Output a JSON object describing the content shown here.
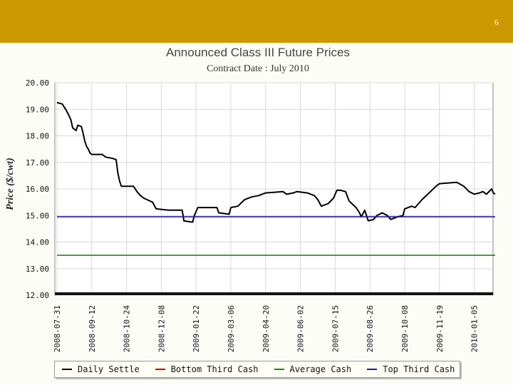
{
  "slide": {
    "number": "6"
  },
  "colors": {
    "bar": "#cc9900",
    "daily": "#000000",
    "bottom": "#cc0000",
    "average": "#1a8a1a",
    "top": "#1a1aaa"
  },
  "chart_data": {
    "type": "line",
    "title": "Announced Class III  Future Prices",
    "subtitle": "Contract Date : July 2010",
    "ylabel": "Price ($/cwt)",
    "xlabel": "",
    "ylim": [
      12,
      20
    ],
    "y_ticks": [
      "20.00",
      "19.00",
      "18.00",
      "17.00",
      "16.00",
      "15.00",
      "14.00",
      "13.00",
      "12.00"
    ],
    "x_ticks": [
      "2008-07-31",
      "2008-09-12",
      "2008-10-24",
      "2008-12-08",
      "2009-01-22",
      "2009-03-06",
      "2009-04-20",
      "2009-06-02",
      "2009-07-15",
      "2009-08-26",
      "2009-10-08",
      "2009-11-19",
      "2010-01-05"
    ],
    "series": [
      {
        "name": "Daily Settle",
        "color": "#000000",
        "points": [
          [
            0,
            19.25
          ],
          [
            0.15,
            19.2
          ],
          [
            0.25,
            19.0
          ],
          [
            0.35,
            18.75
          ],
          [
            0.4,
            18.6
          ],
          [
            0.45,
            18.3
          ],
          [
            0.55,
            18.2
          ],
          [
            0.6,
            18.4
          ],
          [
            0.7,
            18.35
          ],
          [
            0.75,
            18.1
          ],
          [
            0.8,
            17.8
          ],
          [
            0.85,
            17.6
          ],
          [
            0.9,
            17.5
          ],
          [
            0.95,
            17.35
          ],
          [
            1.0,
            17.3
          ],
          [
            1.3,
            17.3
          ],
          [
            1.4,
            17.2
          ],
          [
            1.6,
            17.15
          ],
          [
            1.7,
            17.1
          ],
          [
            1.75,
            16.6
          ],
          [
            1.8,
            16.3
          ],
          [
            1.85,
            16.1
          ],
          [
            2.2,
            16.1
          ],
          [
            2.3,
            15.9
          ],
          [
            2.4,
            15.75
          ],
          [
            2.5,
            15.65
          ],
          [
            2.75,
            15.5
          ],
          [
            2.85,
            15.25
          ],
          [
            3.2,
            15.2
          ],
          [
            3.6,
            15.2
          ],
          [
            3.65,
            14.8
          ],
          [
            3.9,
            14.75
          ],
          [
            3.95,
            15.0
          ],
          [
            4.05,
            15.3
          ],
          [
            4.6,
            15.3
          ],
          [
            4.65,
            15.1
          ],
          [
            4.95,
            15.05
          ],
          [
            5.0,
            15.3
          ],
          [
            5.2,
            15.35
          ],
          [
            5.4,
            15.6
          ],
          [
            5.6,
            15.7
          ],
          [
            5.8,
            15.75
          ],
          [
            6.0,
            15.85
          ],
          [
            6.5,
            15.9
          ],
          [
            6.6,
            15.8
          ],
          [
            6.8,
            15.85
          ],
          [
            6.9,
            15.9
          ],
          [
            7.2,
            15.85
          ],
          [
            7.4,
            15.75
          ],
          [
            7.5,
            15.6
          ],
          [
            7.6,
            15.35
          ],
          [
            7.8,
            15.45
          ],
          [
            7.95,
            15.65
          ],
          [
            8.05,
            15.95
          ],
          [
            8.15,
            15.95
          ],
          [
            8.3,
            15.9
          ],
          [
            8.4,
            15.55
          ],
          [
            8.6,
            15.3
          ],
          [
            8.7,
            15.1
          ],
          [
            8.75,
            14.95
          ],
          [
            8.85,
            15.2
          ],
          [
            8.95,
            14.8
          ],
          [
            9.1,
            14.85
          ],
          [
            9.2,
            15.0
          ],
          [
            9.35,
            15.1
          ],
          [
            9.5,
            15.0
          ],
          [
            9.6,
            14.85
          ],
          [
            9.8,
            14.95
          ],
          [
            9.95,
            15.0
          ],
          [
            10.0,
            15.25
          ],
          [
            10.2,
            15.35
          ],
          [
            10.3,
            15.3
          ],
          [
            10.5,
            15.6
          ],
          [
            10.7,
            15.85
          ],
          [
            10.9,
            16.1
          ],
          [
            11.0,
            16.2
          ],
          [
            11.5,
            16.25
          ],
          [
            11.7,
            16.1
          ],
          [
            11.85,
            15.9
          ],
          [
            12.0,
            15.8
          ],
          [
            12.15,
            15.85
          ],
          [
            12.25,
            15.9
          ],
          [
            12.35,
            15.8
          ],
          [
            12.5,
            16.0
          ],
          [
            12.55,
            15.85
          ],
          [
            12.6,
            15.8
          ]
        ]
      },
      {
        "name": "Bottom Third Cash",
        "color": "#cc0000",
        "points": []
      },
      {
        "name": "Average Cash",
        "color": "#1a8a1a",
        "points": [
          [
            0,
            13.5
          ],
          [
            12.6,
            13.5
          ]
        ]
      },
      {
        "name": "Top Third Cash",
        "color": "#1a1aaa",
        "points": [
          [
            0,
            14.95
          ],
          [
            12.6,
            14.95
          ]
        ]
      }
    ]
  }
}
